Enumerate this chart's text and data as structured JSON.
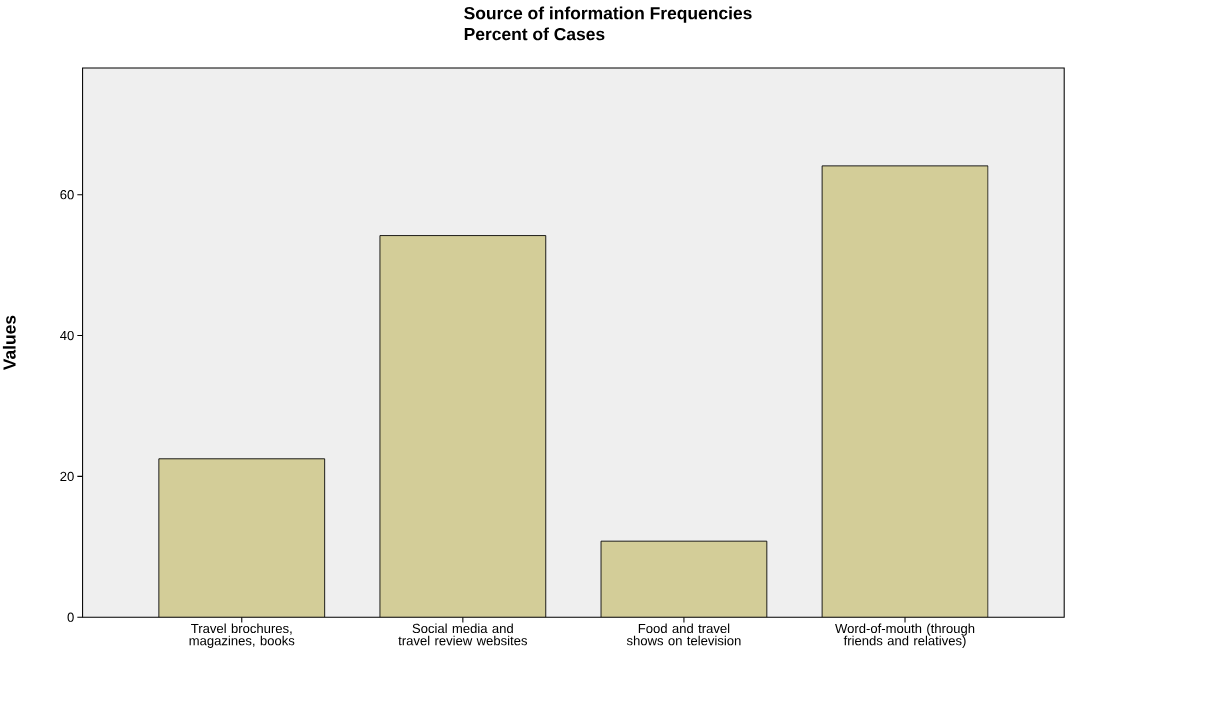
{
  "chart_data": {
    "type": "bar",
    "title": "Source of information  Frequencies",
    "subtitle": "Percent of Cases",
    "ylabel": "Values",
    "categories": [
      "Travel brochures, magazines, books",
      "Social media and travel review websites",
      "Food and travel shows on television",
      "Word-of-mouth (through friends and relatives)"
    ],
    "values": [
      22.5,
      54.2,
      10.8,
      64.1
    ],
    "color": "#d3cd98",
    "ylim": [
      0,
      78
    ],
    "yticks": [
      0,
      20,
      40,
      60
    ],
    "grid": false
  }
}
